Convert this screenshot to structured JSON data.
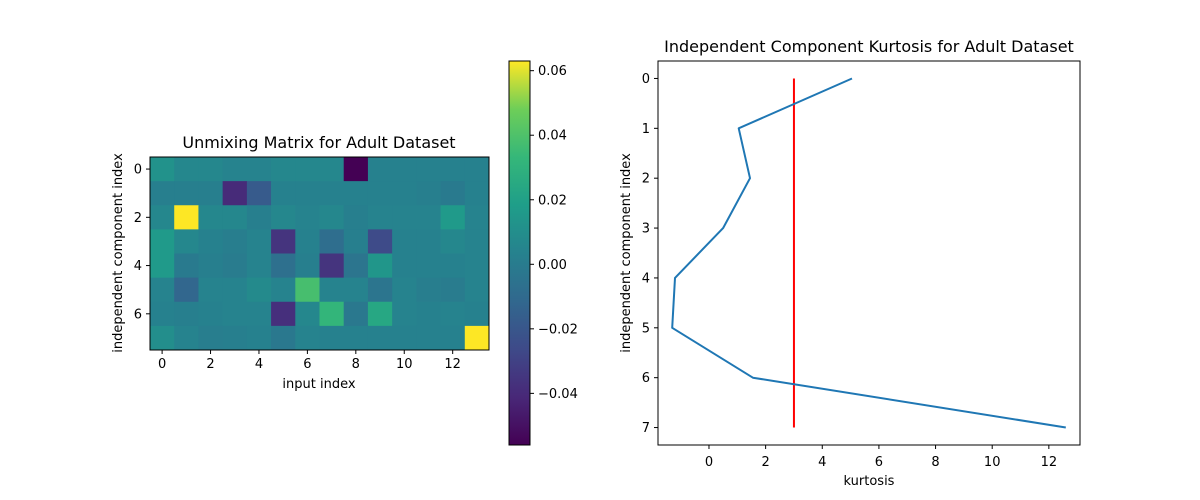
{
  "chart_data": [
    {
      "type": "heatmap",
      "title": "Unmixing Matrix for Adult Dataset",
      "xlabel": "input index",
      "ylabel": "independent component index",
      "colormap": "viridis",
      "x_ticks": [
        "0",
        "2",
        "4",
        "6",
        "8",
        "10",
        "12"
      ],
      "y_ticks": [
        "0",
        "2",
        "4",
        "6"
      ],
      "xlim": [
        -0.5,
        13.5
      ],
      "ylim": [
        7.5,
        -0.5
      ],
      "vmin": -0.056,
      "vmax": 0.063,
      "values": [
        [
          0.012,
          0.006,
          0.006,
          0.004,
          0.004,
          0.006,
          0.006,
          0.006,
          -0.056,
          0.003,
          0.003,
          0.003,
          0.003,
          0.003
        ],
        [
          0.002,
          0.002,
          0.002,
          -0.04,
          -0.018,
          0.003,
          0.003,
          0.003,
          0.003,
          0.003,
          0.003,
          0.002,
          -0.001,
          0.003
        ],
        [
          0.006,
          0.063,
          0.006,
          0.006,
          0.002,
          0.006,
          0.004,
          0.006,
          0.002,
          0.004,
          0.004,
          0.004,
          0.016,
          0.004
        ],
        [
          0.016,
          0.006,
          0.003,
          0.001,
          0.004,
          -0.036,
          0.003,
          -0.008,
          0.002,
          -0.026,
          0.003,
          0.003,
          0.006,
          0.004
        ],
        [
          0.016,
          -0.001,
          0.002,
          0.0,
          0.004,
          -0.007,
          0.002,
          -0.036,
          -0.004,
          0.014,
          0.003,
          0.003,
          0.003,
          0.004
        ],
        [
          0.004,
          -0.012,
          0.004,
          0.004,
          0.008,
          0.004,
          0.038,
          0.004,
          0.004,
          -0.004,
          0.004,
          0.001,
          0.0,
          0.004
        ],
        [
          0.003,
          0.002,
          0.003,
          0.004,
          0.004,
          -0.038,
          0.006,
          0.032,
          -0.002,
          0.024,
          0.004,
          0.003,
          0.004,
          0.003
        ],
        [
          0.01,
          0.004,
          0.001,
          0.002,
          0.003,
          -0.002,
          0.004,
          0.003,
          0.003,
          0.003,
          0.003,
          0.003,
          0.003,
          0.063
        ]
      ],
      "colorbar": {
        "ticks": [
          "0.06",
          "0.04",
          "0.02",
          "0.00",
          "−0.02",
          "−0.04"
        ],
        "tick_values": [
          0.06,
          0.04,
          0.02,
          0.0,
          -0.02,
          -0.04
        ]
      }
    },
    {
      "type": "line",
      "title": "Independent Component Kurtosis for Adult Dataset",
      "xlabel": "kurtosis",
      "ylabel": "independent component index",
      "xlim": [
        -1.8,
        13.1
      ],
      "ylim": [
        7.35,
        -0.35
      ],
      "x_ticks": [
        "0",
        "2",
        "4",
        "6",
        "8",
        "10",
        "12"
      ],
      "y_ticks": [
        "0",
        "1",
        "2",
        "3",
        "4",
        "5",
        "6",
        "7"
      ],
      "series": [
        {
          "color": "#1f77b4",
          "points": [
            [
              5.05,
              0
            ],
            [
              1.05,
              1
            ],
            [
              1.45,
              2
            ],
            [
              0.5,
              3
            ],
            [
              -1.2,
              4
            ],
            [
              -1.3,
              5
            ],
            [
              1.55,
              6
            ],
            [
              12.6,
              7
            ]
          ]
        }
      ],
      "reference_line": {
        "color": "#ff0000",
        "x": 3,
        "y_from": 0,
        "y_to": 7
      }
    }
  ]
}
